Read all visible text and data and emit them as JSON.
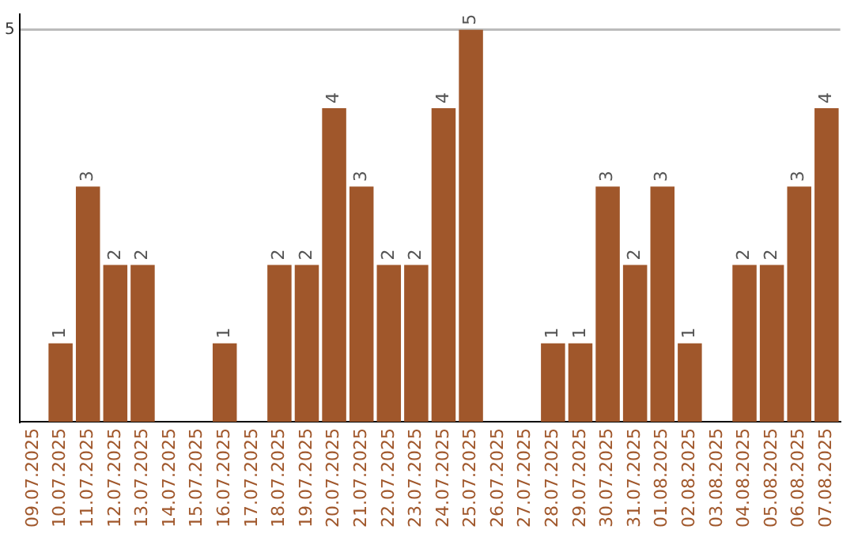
{
  "chart_data": {
    "type": "bar",
    "categories": [
      "09.07.2025",
      "10.07.2025",
      "11.07.2025",
      "12.07.2025",
      "13.07.2025",
      "14.07.2025",
      "15.07.2025",
      "16.07.2025",
      "17.07.2025",
      "18.07.2025",
      "19.07.2025",
      "20.07.2025",
      "21.07.2025",
      "22.07.2025",
      "23.07.2025",
      "24.07.2025",
      "25.07.2025",
      "26.07.2025",
      "27.07.2025",
      "28.07.2025",
      "29.07.2025",
      "30.07.2025",
      "31.07.2025",
      "01.08.2025",
      "02.08.2025",
      "03.08.2025",
      "04.08.2025",
      "05.08.2025",
      "06.08.2025",
      "07.08.2025"
    ],
    "values": [
      0,
      1,
      3,
      2,
      2,
      0,
      0,
      1,
      0,
      2,
      2,
      4,
      3,
      2,
      2,
      4,
      5,
      0,
      0,
      1,
      1,
      3,
      2,
      3,
      1,
      0,
      2,
      2,
      3,
      4
    ],
    "value_labels": [
      null,
      "1",
      "3",
      "2",
      "2",
      null,
      null,
      "1",
      null,
      "2",
      "2",
      "4",
      "3",
      "2",
      "2",
      "4",
      "5",
      null,
      null,
      "1",
      "1",
      "3",
      "2",
      "3",
      "1",
      null,
      "2",
      "2",
      "3",
      "4"
    ],
    "color": "#a0572b",
    "ylim": [
      0,
      5.2
    ],
    "yticks": [
      5
    ],
    "grid": "y",
    "legend": false
  }
}
